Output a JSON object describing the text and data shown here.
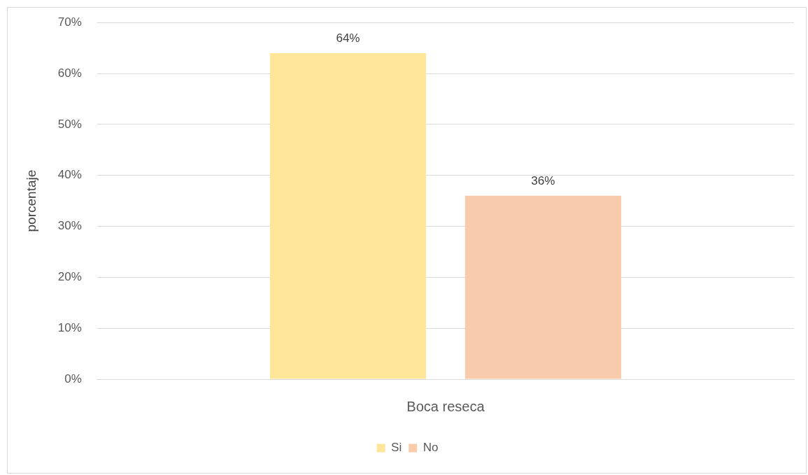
{
  "chart_data": {
    "type": "bar",
    "ylabel": "porcentaje",
    "categories": [
      "Boca reseca"
    ],
    "series": [
      {
        "name": "Si",
        "color": "#ffe699",
        "values": [
          64
        ],
        "value_labels": [
          "64%"
        ]
      },
      {
        "name": "No",
        "color": "#f8cbad",
        "values": [
          36
        ],
        "value_labels": [
          "36%"
        ]
      }
    ],
    "ylim": [
      0,
      70
    ],
    "yticks": [
      {
        "value": 0,
        "label": "0%"
      },
      {
        "value": 10,
        "label": "10%"
      },
      {
        "value": 20,
        "label": "20%"
      },
      {
        "value": 30,
        "label": "30%"
      },
      {
        "value": 40,
        "label": "40%"
      },
      {
        "value": 50,
        "label": "50%"
      },
      {
        "value": 60,
        "label": "60%"
      },
      {
        "value": 70,
        "label": "70%"
      }
    ],
    "grid": "y",
    "legend": "bottom"
  }
}
